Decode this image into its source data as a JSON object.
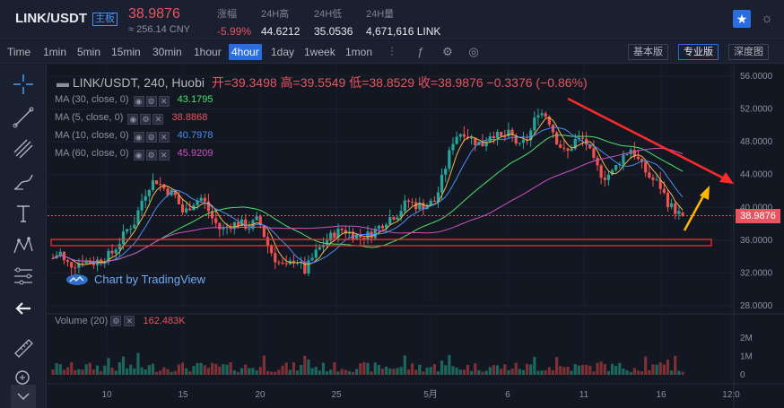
{
  "header": {
    "pair": "LINK/USDT",
    "board_label": "主板",
    "price": "38.9876",
    "price_cny": "≈ 256.14 CNY",
    "stats": [
      {
        "label": "涨幅",
        "value": "-5.99%",
        "red": true
      },
      {
        "label": "24H高",
        "value": "44.6212",
        "red": false
      },
      {
        "label": "24H低",
        "value": "35.0536",
        "red": false
      },
      {
        "label": "24H量",
        "value": "4,671,616 LINK",
        "red": false
      }
    ]
  },
  "toolbar": {
    "timeframes": [
      "Time",
      "1min",
      "5min",
      "15min",
      "30min",
      "1hour",
      "4hour",
      "1day",
      "1week",
      "1mon"
    ],
    "active_timeframe": "4hour",
    "modes": [
      "基本版",
      "专业版",
      "深度图"
    ],
    "active_mode": "专业版"
  },
  "chart": {
    "symbol_line": "LINK/USDT, 240, Huobi",
    "ohlc": "开=39.3498  高=39.5549  低=38.8529  收=38.9876  −0.3376 (−0.86%)",
    "ma": [
      {
        "label": "MA (30, close, 0)",
        "value": "43.1795",
        "color": "#4ee16a"
      },
      {
        "label": "MA (5, close, 0)",
        "value": "38.8868",
        "color": "#f0b84a"
      },
      {
        "label": "MA (10, close, 0)",
        "value": "40.7978",
        "color": "#4a8ef0"
      },
      {
        "label": "MA (60, close, 0)",
        "value": "45.9209",
        "color": "#d050c0"
      }
    ],
    "volume_label": "Volume (20)",
    "volume_value": "162.483K",
    "watermark": "Chart by TradingView",
    "price_tag": "38.9876",
    "price_axis": [
      "56.0000",
      "52.0000",
      "48.0000",
      "44.0000",
      "40.0000",
      "36.0000",
      "32.0000",
      "28.0000"
    ],
    "volume_axis": [
      "2M",
      "1M",
      "0"
    ],
    "time_axis": [
      "10",
      "15",
      "20",
      "25",
      "5月",
      "6",
      "11",
      "16",
      "12:0"
    ],
    "colors": {
      "up": "#26a69a",
      "down": "#ef5350",
      "trend_red": "#ff2a2a",
      "trend_yellow": "#ffb800"
    }
  }
}
